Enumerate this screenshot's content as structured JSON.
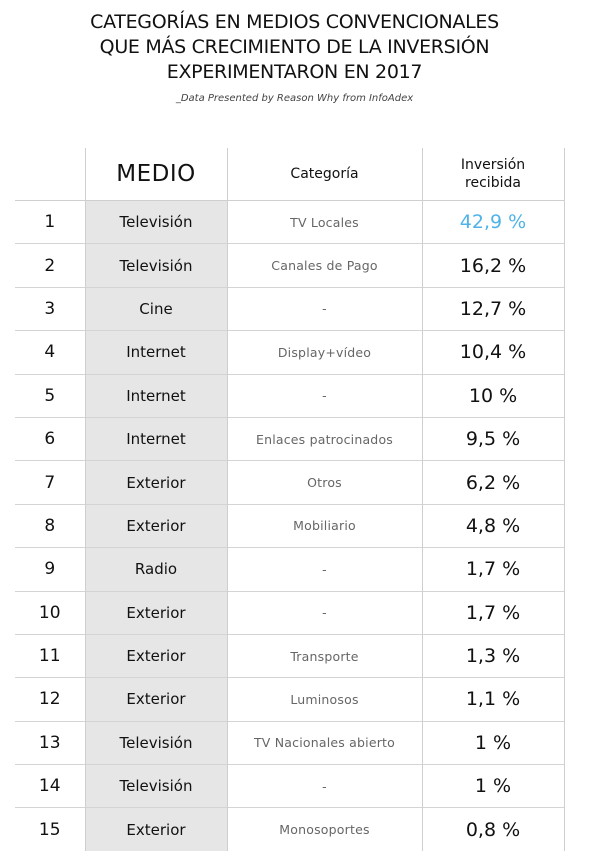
{
  "title": {
    "lines": [
      "CATEGORÍAS EN MEDIOS CONVENCIONALES",
      "QUE MÁS CRECIMIENTO DE LA INVERSIÓN",
      "EXPERIMENTARON EN 2017"
    ]
  },
  "source": "_Data Presented by Reason Why from InfoAdex",
  "highlight_color": "#4fb3e8",
  "chart_data": {
    "type": "table",
    "columns": [
      "",
      "MEDIO",
      "Categoría",
      "Inversión recibida"
    ],
    "header": {
      "medio": "MEDIO",
      "categoria": "Categoría",
      "inversion_line1": "Inversión",
      "inversion_line2": "recibida"
    },
    "rows": [
      {
        "rank": "1",
        "medio": "Televisión",
        "categoria": "TV Locales",
        "inversion": "42,9 %",
        "value": 42.9
      },
      {
        "rank": "2",
        "medio": "Televisión",
        "categoria": "Canales de Pago",
        "inversion": "16,2 %",
        "value": 16.2
      },
      {
        "rank": "3",
        "medio": "Cine",
        "categoria": "-",
        "inversion": "12,7 %",
        "value": 12.7
      },
      {
        "rank": "4",
        "medio": "Internet",
        "categoria": "Display+vídeo",
        "inversion": "10,4 %",
        "value": 10.4
      },
      {
        "rank": "5",
        "medio": "Internet",
        "categoria": "-",
        "inversion": "10 %",
        "value": 10
      },
      {
        "rank": "6",
        "medio": "Internet",
        "categoria": "Enlaces patrocinados",
        "inversion": "9,5 %",
        "value": 9.5
      },
      {
        "rank": "7",
        "medio": "Exterior",
        "categoria": "Otros",
        "inversion": "6,2 %",
        "value": 6.2
      },
      {
        "rank": "8",
        "medio": "Exterior",
        "categoria": "Mobiliario",
        "inversion": "4,8 %",
        "value": 4.8
      },
      {
        "rank": "9",
        "medio": "Radio",
        "categoria": "-",
        "inversion": "1,7 %",
        "value": 1.7
      },
      {
        "rank": "10",
        "medio": "Exterior",
        "categoria": "-",
        "inversion": "1,7 %",
        "value": 1.7
      },
      {
        "rank": "11",
        "medio": "Exterior",
        "categoria": "Transporte",
        "inversion": "1,3 %",
        "value": 1.3
      },
      {
        "rank": "12",
        "medio": "Exterior",
        "categoria": "Luminosos",
        "inversion": "1,1 %",
        "value": 1.1
      },
      {
        "rank": "13",
        "medio": "Televisión",
        "categoria": "TV Nacionales abierto",
        "inversion": "1 %",
        "value": 1
      },
      {
        "rank": "14",
        "medio": "Televisión",
        "categoria": "-",
        "inversion": "1 %",
        "value": 1
      },
      {
        "rank": "15",
        "medio": "Exterior",
        "categoria": "Monosoportes",
        "inversion": "0,8 %",
        "value": 0.8
      }
    ]
  }
}
